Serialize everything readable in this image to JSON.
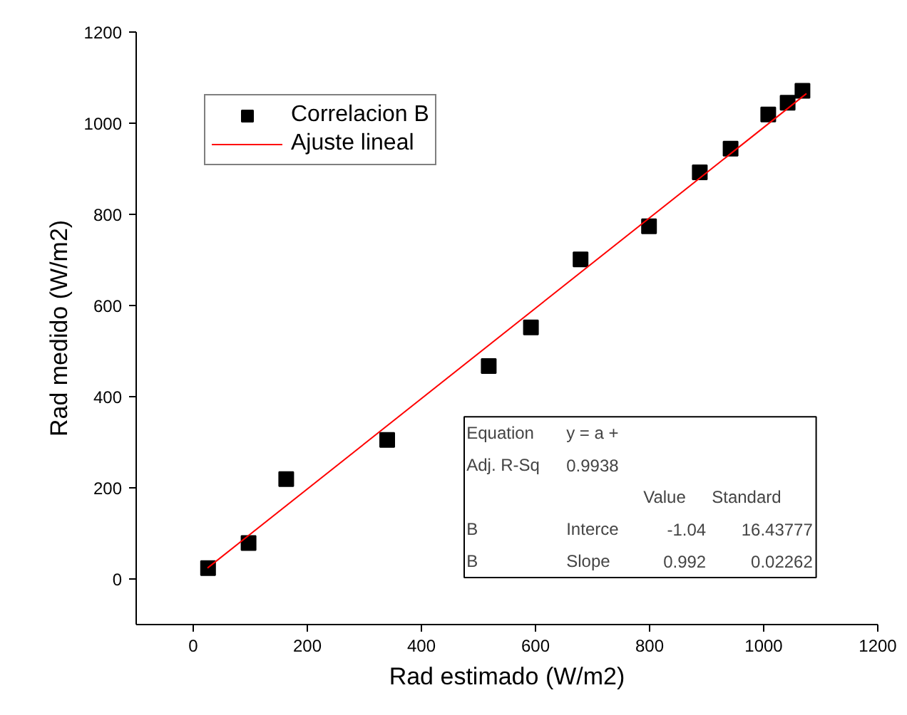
{
  "chart_data": {
    "type": "scatter",
    "xlabel": "Rad estimado (W/m2)",
    "ylabel": "Rad medido (W/m2)",
    "xlim": [
      -100,
      1200
    ],
    "ylim": [
      -100,
      1200
    ],
    "xticks": [
      0,
      200,
      400,
      600,
      800,
      1000,
      1200
    ],
    "yticks": [
      0,
      200,
      400,
      600,
      800,
      1000,
      1200
    ],
    "grid": false,
    "legend": "top left",
    "series": [
      {
        "name": "Correlacion B",
        "marker": "square",
        "color": "#000000",
        "x": [
          26,
          97,
          163,
          340,
          518,
          592,
          679,
          799,
          888,
          942,
          1008,
          1042,
          1068
        ],
        "values": [
          24,
          79,
          219,
          305,
          467,
          552,
          701,
          774,
          892,
          944,
          1019,
          1045,
          1071
        ]
      },
      {
        "name": "Ajuste lineal",
        "type": "line",
        "color": "#ff0000",
        "x": [
          25,
          1075
        ],
        "values": [
          24,
          1065
        ]
      }
    ],
    "annotations": [
      "Equation",
      "y = a +",
      "Adj. R-Sq",
      "0.9938",
      "Value",
      "Standard",
      "B",
      "Interce",
      "-1.04",
      "16.43777",
      "B",
      "Slope",
      "0.992",
      "0.02262"
    ]
  }
}
